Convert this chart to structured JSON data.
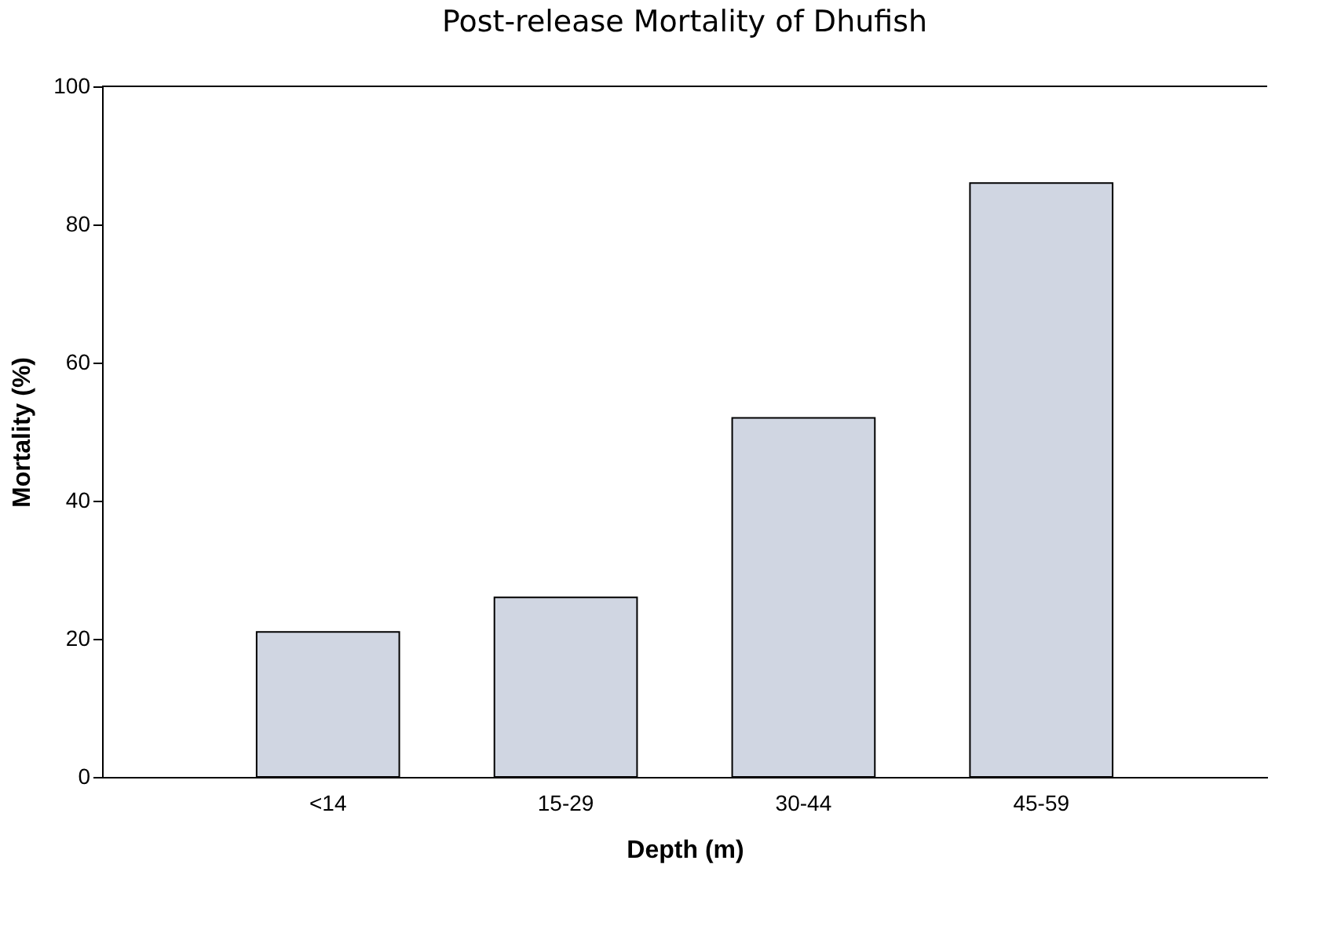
{
  "chart_data": {
    "type": "bar",
    "title": "Post-release Mortality of Dhufish",
    "xlabel": "Depth (m)",
    "ylabel": "Mortality (%)",
    "categories": [
      "<14",
      "15-29",
      "30-44",
      "45-59"
    ],
    "values": [
      21,
      26,
      52,
      86
    ],
    "color": "#d0d6e2",
    "ylim": [
      0,
      100
    ],
    "yticks": [
      0,
      20,
      40,
      60,
      80,
      100
    ],
    "grid": false
  }
}
